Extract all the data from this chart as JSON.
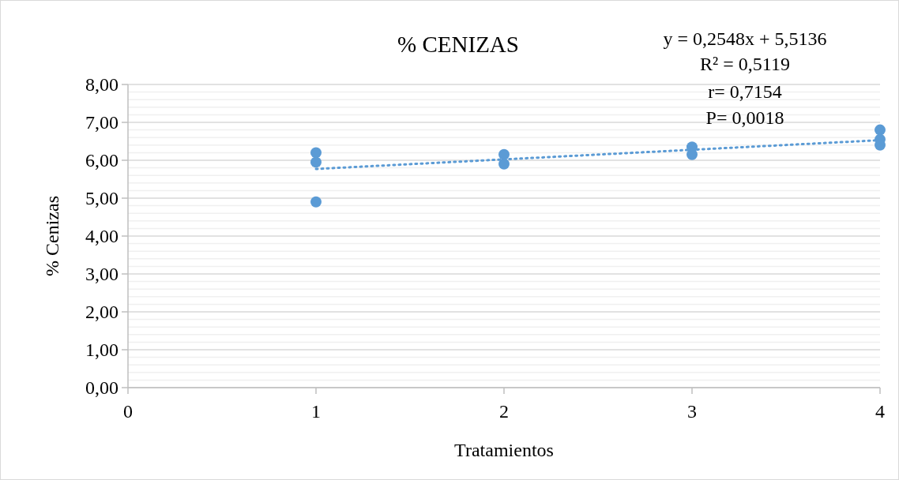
{
  "chart_data": {
    "type": "scatter",
    "title": "% CENIZAS",
    "xlabel": "Tratamientos",
    "ylabel": "% Cenizas",
    "annotations": [
      "y = 0,2548x + 5,5136",
      "R² = 0,5119",
      "r= 0,7154",
      "P= 0,0018"
    ],
    "xlim": [
      0,
      4
    ],
    "xticks": [
      0,
      1,
      2,
      3,
      4
    ],
    "ylim": [
      0,
      8
    ],
    "yticks": [
      {
        "value": 0,
        "label": "0,00"
      },
      {
        "value": 1,
        "label": "1,00"
      },
      {
        "value": 2,
        "label": "2,00"
      },
      {
        "value": 3,
        "label": "3,00"
      },
      {
        "value": 4,
        "label": "4,00"
      },
      {
        "value": 5,
        "label": "5,00"
      },
      {
        "value": 6,
        "label": "6,00"
      },
      {
        "value": 7,
        "label": "7,00"
      },
      {
        "value": 8,
        "label": "8,00"
      }
    ],
    "grid": "y",
    "marker": "circle",
    "series": [
      {
        "color": "#5b9bd5",
        "x": [
          1,
          1,
          1,
          2,
          2,
          3,
          3,
          4,
          4,
          4
        ],
        "values": [
          6.2,
          5.95,
          4.9,
          6.15,
          5.9,
          6.35,
          6.15,
          6.8,
          6.55,
          6.4
        ]
      },
      {
        "type": "line",
        "color": "#5b9bd5",
        "line_style": "dotted",
        "marker": "none",
        "x": [
          1,
          4
        ],
        "values": [
          5.77,
          6.53
        ]
      }
    ]
  }
}
